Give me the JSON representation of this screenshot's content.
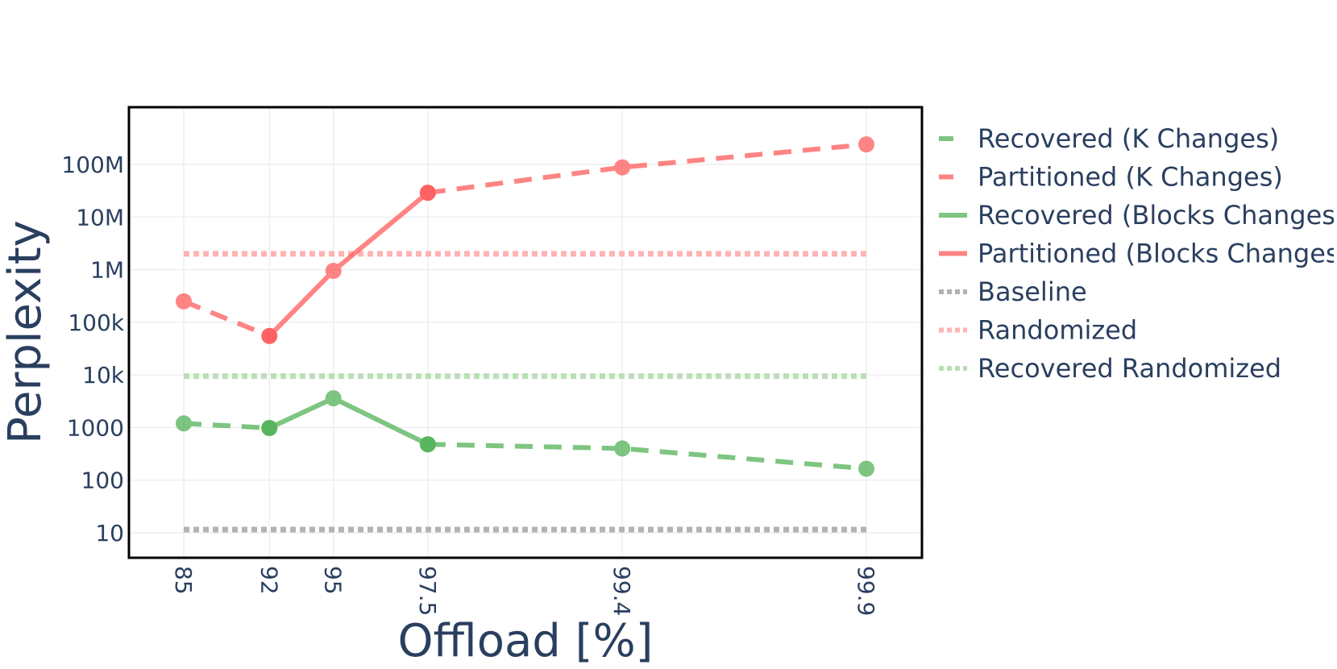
{
  "chart_data": {
    "type": "line",
    "xlabel": "Offload [%]",
    "ylabel": "Perplexity",
    "x_scale": "categorical-by-log-distance",
    "y_scale": "log",
    "ylim": [
      4,
      1000000000
    ],
    "grid": true,
    "legend_position": "right",
    "x_ticks": [
      "85",
      "92",
      "95",
      "97.5",
      "99.4",
      "99.9"
    ],
    "y_ticks": [
      "10",
      "100",
      "1000",
      "10k",
      "100k",
      "1M",
      "10M",
      "100M"
    ],
    "y_tick_values": [
      10,
      100,
      1000,
      10000,
      100000,
      1000000,
      10000000,
      100000000
    ],
    "series": [
      {
        "name": "Recovered (K Changes)",
        "color": "#4caf50",
        "dash": "dash",
        "markers": true,
        "segments": [
          {
            "x": [
              85,
              92
            ],
            "y": [
              1200,
              980
            ]
          },
          {
            "x": [
              97.5,
              99.4,
              99.9
            ],
            "y": [
              480,
              400,
              165
            ]
          }
        ]
      },
      {
        "name": "Partitioned (K Changes)",
        "color": "#ff5555",
        "dash": "dash",
        "markers": true,
        "segments": [
          {
            "x": [
              85,
              92
            ],
            "y": [
              250000,
              55000
            ]
          },
          {
            "x": [
              97.5,
              99.4,
              99.9
            ],
            "y": [
              29000000,
              88000000,
              240000000
            ]
          }
        ]
      },
      {
        "name": "Recovered (Blocks Changes)",
        "color": "#4caf50",
        "dash": "solid",
        "markers": true,
        "segments": [
          {
            "x": [
              92,
              95,
              97.5
            ],
            "y": [
              980,
              3600,
              480
            ]
          }
        ]
      },
      {
        "name": "Partitioned (Blocks Changes)",
        "color": "#ff5555",
        "dash": "solid",
        "markers": true,
        "segments": [
          {
            "x": [
              92,
              95,
              97.5
            ],
            "y": [
              55000,
              950000,
              29000000
            ]
          }
        ]
      },
      {
        "name": "Baseline",
        "color": "#b3b3b3",
        "dash": "dot",
        "markers": false,
        "segments": [
          {
            "x": [
              85,
              99.9
            ],
            "y": [
              11.5,
              11.5
            ]
          }
        ]
      },
      {
        "name": "Randomized",
        "color": "#ffb3b3",
        "dash": "dot",
        "markers": false,
        "segments": [
          {
            "x": [
              85,
              99.9
            ],
            "y": [
              2000000,
              2000000
            ]
          }
        ]
      },
      {
        "name": "Recovered Randomized",
        "color": "#b9dfb4",
        "dash": "dot",
        "markers": false,
        "segments": [
          {
            "x": [
              85,
              99.9
            ],
            "y": [
              9500,
              9500
            ]
          }
        ]
      }
    ]
  }
}
